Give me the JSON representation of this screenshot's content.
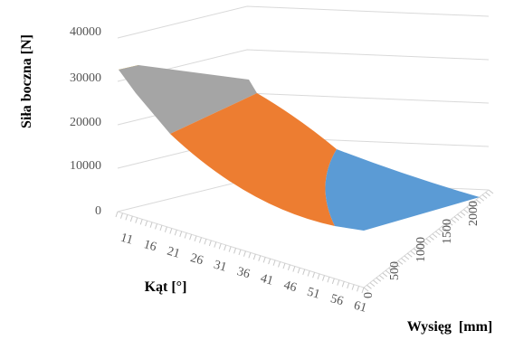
{
  "chart_data": {
    "type": "surface",
    "title": "",
    "zlabel": "Siła boczna [N]",
    "ylabel": "Kąt [°]",
    "xlabel": "Wysięg  [mm]",
    "z_ticks": [
      "0",
      "10000",
      "20000",
      "30000",
      "40000"
    ],
    "z_range": [
      0,
      40000
    ],
    "angle_ticks": [
      "11",
      "16",
      "21",
      "26",
      "31",
      "36",
      "41",
      "46",
      "51",
      "56",
      "61"
    ],
    "reach_ticks": [
      "0",
      "500",
      "1000",
      "1500",
      "2000"
    ],
    "bands": [
      {
        "range": [
          0,
          10000
        ],
        "color": "#5b9bd5"
      },
      {
        "range": [
          10000,
          20000
        ],
        "color": "#ed7d31"
      },
      {
        "range": [
          20000,
          30000
        ],
        "color": "#a5a5a5"
      },
      {
        "range": [
          30000,
          40000
        ],
        "color": "#ffc000"
      }
    ],
    "surface_z": {
      "corner_angle11_reach2000": 30800,
      "corner_angle61_reach2000": 4200,
      "corner_angle61_reach0": 200,
      "back_edge_angle11_to_36": [
        30800,
        26800
      ]
    },
    "grid": true
  }
}
